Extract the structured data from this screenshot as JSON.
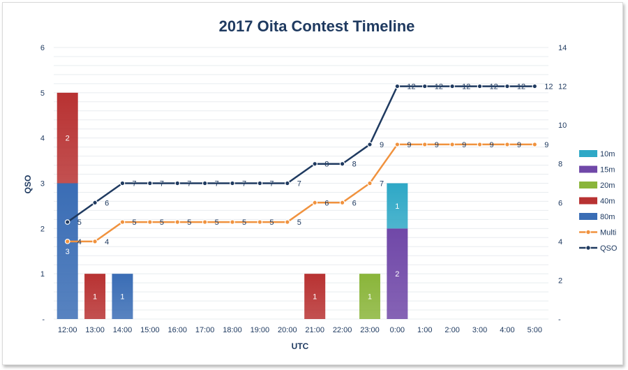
{
  "chart_data": {
    "type": "bar",
    "title": "2017 Oita Contest Timeline",
    "xlabel": "UTC",
    "ylabel": "QSO",
    "categories": [
      "12:00",
      "13:00",
      "14:00",
      "15:00",
      "16:00",
      "17:00",
      "18:00",
      "19:00",
      "20:00",
      "21:00",
      "22:00",
      "23:00",
      "0:00",
      "1:00",
      "2:00",
      "3:00",
      "4:00",
      "5:00"
    ],
    "ylim": [
      0,
      6
    ],
    "y_ticks": [
      "-",
      "1",
      "2",
      "3",
      "4",
      "5",
      "6"
    ],
    "y2lim": [
      0,
      14
    ],
    "y2_ticks": [
      "-",
      "2",
      "4",
      "6",
      "8",
      "10",
      "12",
      "14"
    ],
    "grid": true,
    "legend_position": "right",
    "bar_series": [
      {
        "name": "80m",
        "color": "#3a6db5",
        "values": [
          3,
          0,
          1,
          0,
          0,
          0,
          0,
          0,
          0,
          0,
          0,
          0,
          0,
          0,
          0,
          0,
          0,
          0
        ]
      },
      {
        "name": "40m",
        "color": "#b83232",
        "values": [
          2,
          1,
          0,
          0,
          0,
          0,
          0,
          0,
          0,
          1,
          0,
          0,
          0,
          0,
          0,
          0,
          0,
          0
        ]
      },
      {
        "name": "20m",
        "color": "#8ab53a",
        "values": [
          0,
          0,
          0,
          0,
          0,
          0,
          0,
          0,
          0,
          0,
          0,
          1,
          0,
          0,
          0,
          0,
          0,
          0
        ]
      },
      {
        "name": "15m",
        "color": "#7048a8",
        "values": [
          0,
          0,
          0,
          0,
          0,
          0,
          0,
          0,
          0,
          0,
          0,
          0,
          2,
          0,
          0,
          0,
          0,
          0
        ]
      },
      {
        "name": "10m",
        "color": "#2ea8c6",
        "values": [
          0,
          0,
          0,
          0,
          0,
          0,
          0,
          0,
          0,
          0,
          0,
          0,
          1,
          0,
          0,
          0,
          0,
          0
        ]
      }
    ],
    "line_series": [
      {
        "name": "Multi",
        "color": "#f0923e",
        "axis": "secondary",
        "values": [
          4,
          4,
          5,
          5,
          5,
          5,
          5,
          5,
          5,
          6,
          6,
          7,
          9,
          9,
          9,
          9,
          9,
          9
        ]
      },
      {
        "name": "QSO",
        "color": "#1f3a60",
        "axis": "secondary",
        "values": [
          5,
          6,
          7,
          7,
          7,
          7,
          7,
          7,
          7,
          8,
          8,
          9,
          12,
          12,
          12,
          12,
          12,
          12
        ]
      }
    ],
    "legend": [
      "10m",
      "15m",
      "20m",
      "40m",
      "80m",
      "Multi",
      "QSO"
    ]
  },
  "colors": {
    "title": "#1f3a60",
    "text": "#1f3a60",
    "grid": "#e8ecef"
  }
}
